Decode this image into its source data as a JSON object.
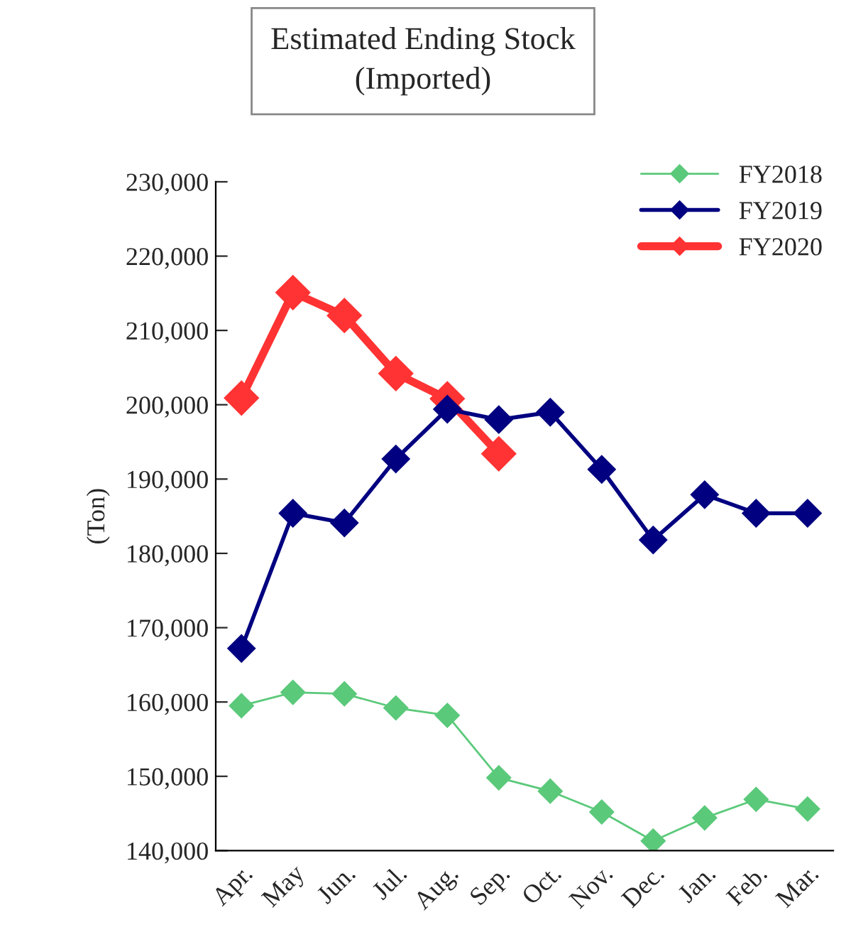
{
  "chart_data": {
    "type": "line",
    "title": "Estimated Ending Stock\n(Imported)",
    "ylabel": "(Ton)",
    "categories": [
      "Apr.",
      "May",
      "Jun.",
      "Jul.",
      "Aug.",
      "Sep.",
      "Oct.",
      "Nov.",
      "Dec.",
      "Jan.",
      "Feb.",
      "Mar."
    ],
    "series": [
      {
        "name": "FY2018",
        "color": "#5bc97a",
        "values": [
          159500,
          161300,
          161100,
          159200,
          158200,
          149800,
          148000,
          145200,
          141300,
          144400,
          146900,
          145600
        ]
      },
      {
        "name": "FY2019",
        "color": "#000080",
        "values": [
          167200,
          185400,
          184100,
          192700,
          199400,
          198000,
          199000,
          191300,
          181800,
          187900,
          185400,
          185400
        ]
      },
      {
        "name": "FY2020",
        "color": "#ff3333",
        "values": [
          200900,
          215100,
          212000,
          204200,
          200800,
          193400,
          null,
          null,
          null,
          null,
          null,
          null
        ]
      }
    ],
    "ylim": [
      140000,
      230000
    ],
    "yticks": [
      {
        "value": 140000,
        "label": "140,000"
      },
      {
        "value": 150000,
        "label": "150,000"
      },
      {
        "value": 160000,
        "label": "160,000"
      },
      {
        "value": 170000,
        "label": "170,000"
      },
      {
        "value": 180000,
        "label": "180,000"
      },
      {
        "value": 190000,
        "label": "190,000"
      },
      {
        "value": 200000,
        "label": "200,000"
      },
      {
        "value": 210000,
        "label": "210,000"
      },
      {
        "value": 220000,
        "label": "220,000"
      },
      {
        "value": 230000,
        "label": "230,000"
      }
    ],
    "marker": "diamond",
    "line_style": "solid",
    "grid": false,
    "legend": "top right"
  }
}
